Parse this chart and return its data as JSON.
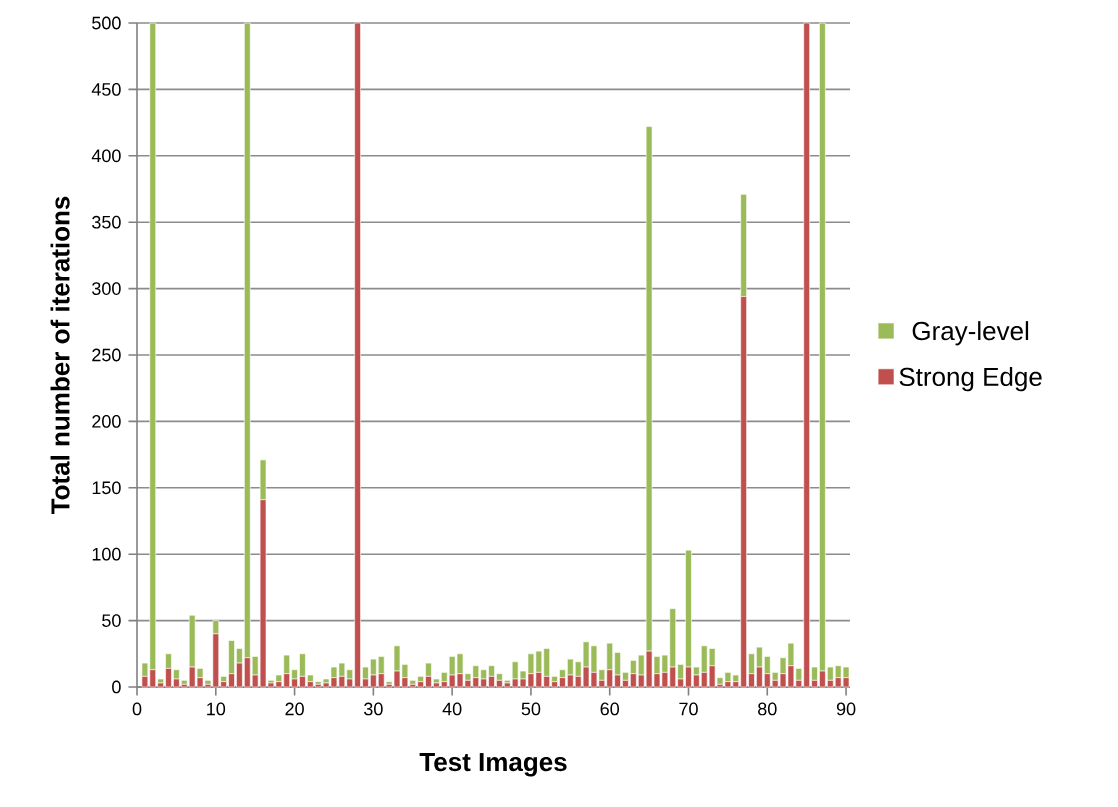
{
  "chart_data": {
    "type": "bar",
    "stacked": true,
    "xlabel": "Test Images",
    "ylabel": "Total number of iterations",
    "x": [
      1,
      2,
      3,
      4,
      5,
      6,
      7,
      8,
      9,
      10,
      11,
      12,
      13,
      14,
      15,
      16,
      17,
      18,
      19,
      20,
      21,
      22,
      23,
      24,
      25,
      26,
      27,
      28,
      29,
      30,
      31,
      32,
      33,
      34,
      35,
      36,
      37,
      38,
      39,
      40,
      41,
      42,
      43,
      44,
      45,
      46,
      47,
      48,
      49,
      50,
      51,
      52,
      53,
      54,
      55,
      56,
      57,
      58,
      59,
      60,
      61,
      62,
      63,
      64,
      65,
      66,
      67,
      68,
      69,
      70,
      71,
      72,
      73,
      74,
      75,
      76,
      77,
      78,
      79,
      80,
      81,
      82,
      83,
      84,
      85,
      86,
      87,
      88,
      89,
      90
    ],
    "series": [
      {
        "name": "Strong Edge",
        "color": "#c0504d",
        "values": [
          8,
          13,
          3,
          14,
          6,
          2,
          15,
          7,
          2,
          40,
          4,
          10,
          18,
          22,
          9,
          141,
          3,
          4,
          10,
          6,
          8,
          4,
          2,
          3,
          7,
          8,
          6,
          500,
          6,
          9,
          10,
          2,
          12,
          7,
          2,
          4,
          8,
          3,
          4,
          9,
          10,
          5,
          7,
          6,
          8,
          5,
          3,
          6,
          6,
          10,
          11,
          8,
          4,
          7,
          9,
          8,
          15,
          11,
          5,
          13,
          9,
          5,
          10,
          9,
          27,
          10,
          11,
          15,
          6,
          15,
          9,
          11,
          16,
          2,
          4,
          4,
          294,
          10,
          15,
          10,
          5,
          10,
          16,
          5,
          500,
          5,
          12,
          5,
          7,
          7
        ]
      },
      {
        "name": "Gray-level",
        "color": "#9bbb59",
        "values": [
          10,
          487,
          3,
          11,
          7,
          3,
          39,
          7,
          3,
          10,
          4,
          25,
          11,
          478,
          14,
          30,
          2,
          5,
          14,
          7,
          17,
          5,
          2,
          3,
          8,
          10,
          7,
          0,
          9,
          12,
          13,
          2,
          19,
          10,
          3,
          4,
          10,
          3,
          7,
          14,
          15,
          5,
          9,
          7,
          8,
          5,
          2,
          13,
          6,
          15,
          16,
          21,
          4,
          6,
          12,
          11,
          19,
          20,
          8,
          20,
          17,
          6,
          10,
          15,
          395,
          13,
          13,
          44,
          11,
          88,
          6,
          20,
          13,
          5,
          7,
          5,
          77,
          15,
          15,
          13,
          6,
          12,
          17,
          9,
          0,
          10,
          488,
          10,
          9,
          8
        ]
      }
    ],
    "xlim": [
      0,
      90.5
    ],
    "xticks": [
      0,
      10,
      20,
      30,
      40,
      50,
      60,
      70,
      80,
      90
    ],
    "ylim": [
      0,
      500
    ],
    "yticks": [
      0,
      50,
      100,
      150,
      200,
      250,
      300,
      350,
      400,
      450,
      500
    ],
    "grid": "y",
    "legend": "right"
  }
}
